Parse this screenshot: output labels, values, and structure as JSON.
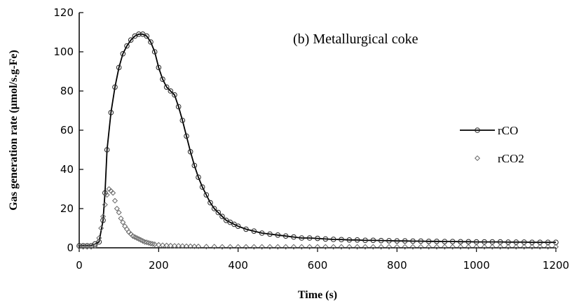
{
  "chart_data": {
    "type": "line",
    "annotation": "(b) Metallurgical coke",
    "xlabel": "Time (s)",
    "ylabel": "Gas generation rate (μmol/s.g-Fe)",
    "xlim": [
      0,
      1200
    ],
    "ylim": [
      0,
      120
    ],
    "xticks": [
      0,
      200,
      400,
      600,
      800,
      1000,
      1200
    ],
    "yticks": [
      0,
      20,
      40,
      60,
      80,
      100,
      120
    ],
    "grid": false,
    "legend_position": "right",
    "series": [
      {
        "name": "rCO",
        "marker": "circle",
        "line": true,
        "x": [
          0,
          10,
          20,
          30,
          40,
          50,
          60,
          65,
          70,
          80,
          90,
          100,
          110,
          120,
          130,
          140,
          150,
          160,
          170,
          180,
          190,
          200,
          210,
          220,
          230,
          240,
          250,
          260,
          270,
          280,
          290,
          300,
          310,
          320,
          330,
          340,
          350,
          360,
          370,
          380,
          390,
          400,
          420,
          440,
          460,
          480,
          500,
          520,
          540,
          560,
          580,
          600,
          620,
          640,
          660,
          680,
          700,
          720,
          740,
          760,
          780,
          800,
          820,
          840,
          860,
          880,
          900,
          920,
          940,
          960,
          980,
          1000,
          1020,
          1040,
          1060,
          1080,
          1100,
          1120,
          1140,
          1160,
          1180,
          1200
        ],
        "y": [
          1,
          1,
          1,
          1,
          2,
          3,
          14,
          28,
          50,
          69,
          82,
          92,
          99,
          103,
          106,
          108,
          109,
          109,
          108,
          105,
          100,
          92,
          86,
          82,
          80,
          78,
          72,
          65,
          57,
          49,
          42,
          36,
          31,
          27,
          23,
          20,
          18,
          16,
          14,
          13,
          12,
          11,
          9.5,
          8.5,
          7.5,
          7,
          6.5,
          6,
          5.5,
          5,
          5,
          4.8,
          4.5,
          4.3,
          4.2,
          4,
          4,
          3.8,
          3.8,
          3.7,
          3.6,
          3.5,
          3.5,
          3.4,
          3.4,
          3.3,
          3.3,
          3.2,
          3.2,
          3.1,
          3.1,
          3,
          3,
          3,
          3,
          2.9,
          2.9,
          2.9,
          2.8,
          2.8,
          2.8,
          2.8
        ]
      },
      {
        "name": "rCO2",
        "marker": "diamond",
        "line": false,
        "x": [
          0,
          10,
          20,
          30,
          40,
          50,
          55,
          60,
          65,
          70,
          75,
          80,
          85,
          90,
          95,
          100,
          105,
          110,
          115,
          120,
          125,
          130,
          135,
          140,
          145,
          150,
          155,
          160,
          165,
          170,
          175,
          180,
          185,
          190,
          200,
          210,
          220,
          230,
          240,
          250,
          260,
          270,
          280,
          290,
          300,
          320,
          340,
          360,
          380,
          400,
          420,
          440,
          460,
          480,
          500,
          520,
          540,
          560,
          580,
          600,
          620,
          640,
          660,
          680,
          700,
          720,
          740,
          760,
          780,
          800,
          820,
          840,
          860,
          880,
          900,
          920,
          940,
          960,
          980,
          1000,
          1020,
          1040,
          1060,
          1080,
          1100,
          1120,
          1140,
          1160,
          1180,
          1200
        ],
        "y": [
          0.5,
          0.5,
          0.5,
          0.5,
          1,
          5,
          10,
          16,
          22,
          27,
          30,
          29,
          28,
          24,
          20,
          18,
          15,
          13,
          11,
          9.5,
          8,
          7,
          6,
          5.5,
          5,
          4.5,
          4,
          3.5,
          3,
          2.8,
          2.5,
          2.2,
          2,
          1.8,
          1.5,
          1.3,
          1.2,
          1.1,
          1,
          1,
          0.9,
          0.8,
          0.8,
          0.7,
          0.7,
          0.6,
          0.6,
          0.5,
          0.5,
          0.5,
          0.5,
          0.5,
          0.5,
          0.5,
          0.5,
          0.5,
          0.5,
          0.5,
          0.5,
          0.5,
          0.5,
          0.5,
          0.5,
          0.5,
          0.5,
          0.5,
          0.5,
          0.5,
          0.5,
          0.5,
          0.5,
          0.5,
          0.5,
          0.5,
          0.5,
          0.5,
          0.5,
          0.5,
          0.5,
          0.5,
          0.5,
          0.5,
          0.5,
          0.5,
          0.5,
          0.5,
          0.5,
          0.5,
          0.5,
          0.5
        ]
      }
    ]
  }
}
